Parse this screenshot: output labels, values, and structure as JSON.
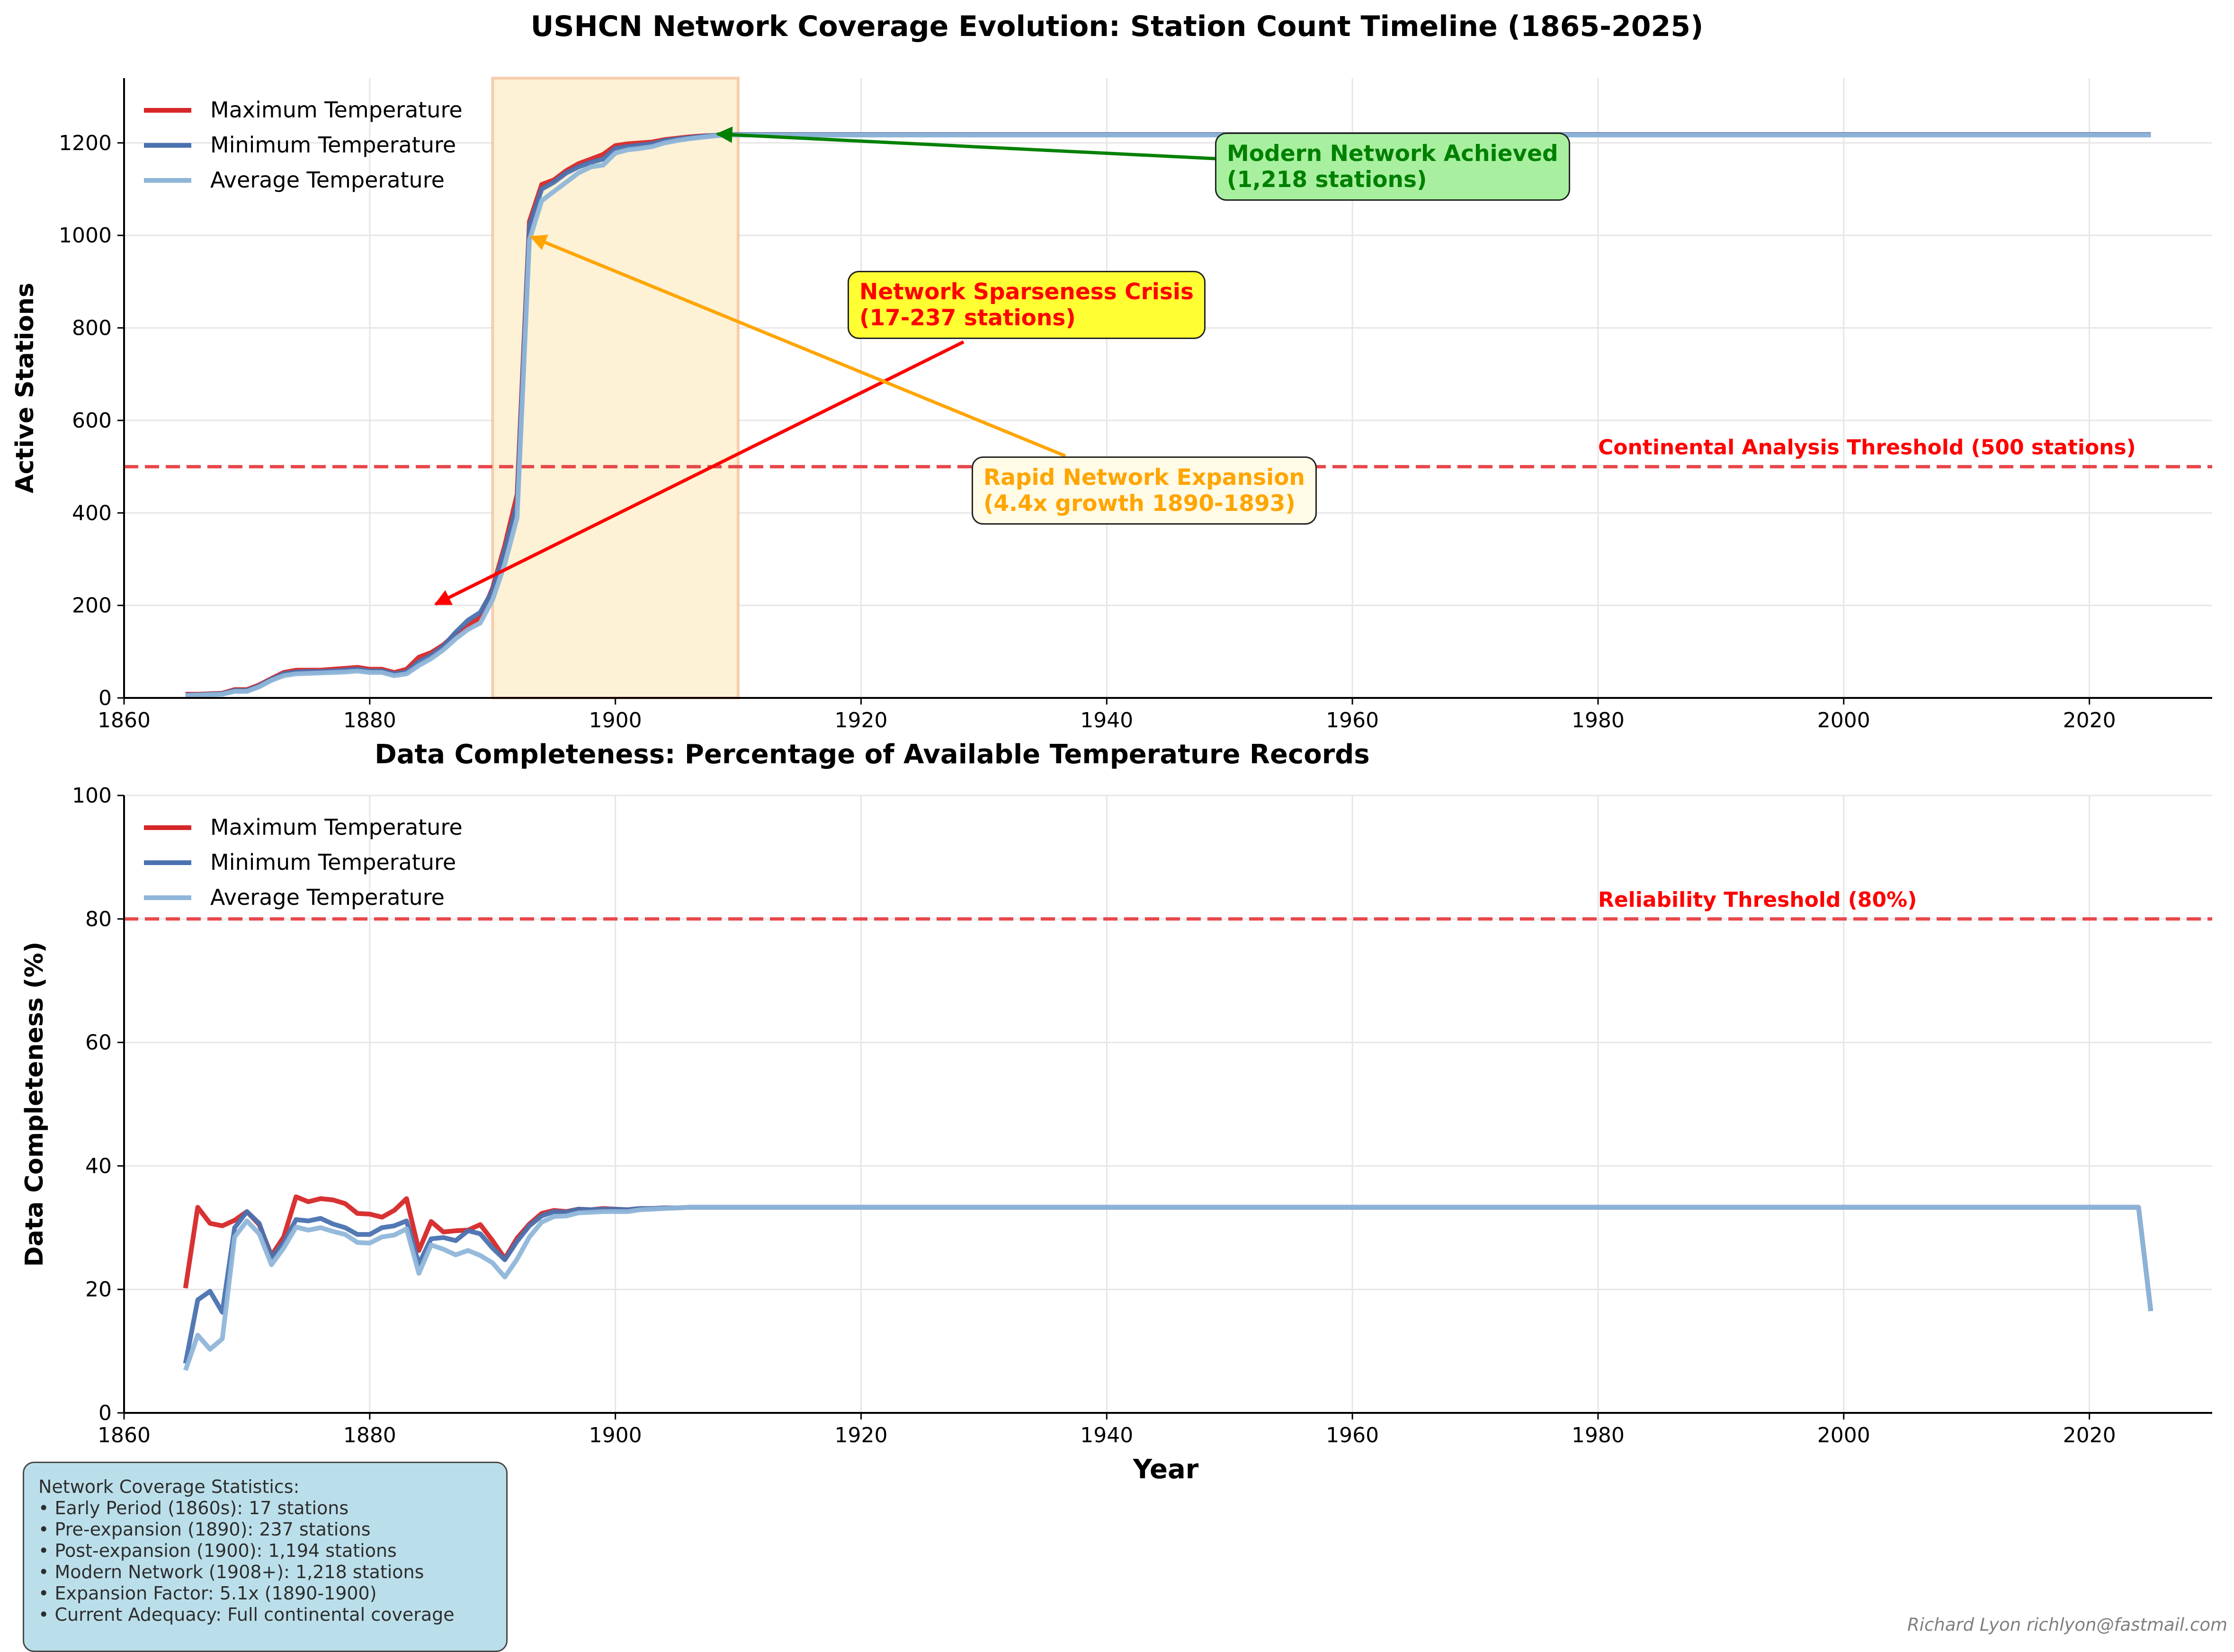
{
  "figure": {
    "title": "USHCN Network Coverage Evolution: Station Count Timeline (1865-2025)",
    "credit": "Richard Lyon richlyon@fastmail.com"
  },
  "annotations": {
    "crisis": {
      "line1": "Network Sparseness Crisis",
      "line2": "(17-237 stations)",
      "color": "#ff0000",
      "box": "#ffff33"
    },
    "modern": {
      "line1": "Modern Network Achieved",
      "line2": "(1,218 stations)",
      "color": "#008000",
      "box": "#a8f0a0"
    },
    "rapid": {
      "line1": "Rapid Network Expansion",
      "line2": "(4.4x growth 1890-1893)",
      "color": "#ffa500",
      "box": "#fffbe6"
    }
  },
  "stats": {
    "heading": "Network Coverage Statistics:",
    "lines": [
      "• Early Period (1860s): 17 stations",
      "• Pre-expansion (1890): 237 stations",
      "• Post-expansion (1900): 1,194 stations",
      "• Modern Network (1908+): 1,218 stations",
      "• Expansion Factor: 5.1x (1890-1900)",
      "• Current Adequacy: Full continental coverage"
    ]
  },
  "colors": {
    "max": "#d62728",
    "min": "#4a72b0",
    "avg": "#8fb6d9",
    "threshold": "#e8474a",
    "highlight": "#fdf1d6"
  },
  "chart_data": [
    {
      "type": "line",
      "title": "",
      "xlabel": "",
      "ylabel": "Active Stations",
      "xlim": [
        1860,
        2030
      ],
      "ylim": [
        0,
        1340
      ],
      "xticks": [
        1860,
        1880,
        1900,
        1920,
        1940,
        1960,
        1980,
        2000,
        2020
      ],
      "yticks": [
        0,
        200,
        400,
        600,
        800,
        1000,
        1200
      ],
      "grid": true,
      "legend": "top-left",
      "shaded_span": [
        1890,
        1910
      ],
      "threshold": {
        "value": 500,
        "label": "Continental Analysis Threshold (500 stations)"
      },
      "x": [
        1865,
        1866,
        1867,
        1868,
        1869,
        1870,
        1871,
        1872,
        1873,
        1874,
        1875,
        1876,
        1877,
        1878,
        1879,
        1880,
        1881,
        1882,
        1883,
        1884,
        1885,
        1886,
        1887,
        1888,
        1889,
        1890,
        1891,
        1892,
        1893,
        1894,
        1895,
        1896,
        1897,
        1898,
        1899,
        1900,
        1901,
        1902,
        1903,
        1904,
        1905,
        1906,
        1907,
        1908,
        1909,
        2025
      ],
      "series": [
        {
          "name": "Maximum Temperature",
          "color": "#d62728",
          "values": [
            8,
            8,
            9,
            10,
            18,
            18,
            28,
            42,
            55,
            60,
            60,
            60,
            62,
            64,
            66,
            62,
            62,
            55,
            62,
            88,
            98,
            115,
            138,
            155,
            175,
            237,
            330,
            440,
            1030,
            1110,
            1120,
            1140,
            1155,
            1165,
            1175,
            1194,
            1198,
            1200,
            1202,
            1207,
            1210,
            1213,
            1215,
            1216,
            1218,
            1218
          ]
        },
        {
          "name": "Minimum Temperature",
          "color": "#4a72b0",
          "values": [
            6,
            7,
            8,
            9,
            16,
            16,
            26,
            40,
            52,
            56,
            57,
            57,
            58,
            60,
            62,
            58,
            58,
            52,
            56,
            78,
            92,
            112,
            142,
            168,
            185,
            232,
            320,
            420,
            1020,
            1100,
            1115,
            1135,
            1148,
            1158,
            1165,
            1188,
            1192,
            1195,
            1198,
            1205,
            1208,
            1211,
            1214,
            1216,
            1218,
            1218
          ]
        },
        {
          "name": "Average Temperature",
          "color": "#8fb6d9",
          "values": [
            5,
            6,
            7,
            8,
            14,
            14,
            24,
            38,
            48,
            52,
            53,
            54,
            55,
            56,
            58,
            55,
            55,
            48,
            52,
            70,
            85,
            104,
            128,
            148,
            162,
            212,
            290,
            390,
            990,
            1075,
            1095,
            1115,
            1135,
            1148,
            1152,
            1178,
            1185,
            1188,
            1192,
            1200,
            1205,
            1209,
            1212,
            1215,
            1217,
            1217
          ]
        }
      ]
    },
    {
      "type": "line",
      "title": "Data Completeness: Percentage of Available Temperature Records",
      "xlabel": "Year",
      "ylabel": "Data Completeness (%)",
      "xlim": [
        1860,
        2030
      ],
      "ylim": [
        0,
        100
      ],
      "xticks": [
        1860,
        1880,
        1900,
        1920,
        1940,
        1960,
        1980,
        2000,
        2020
      ],
      "yticks": [
        0,
        20,
        40,
        60,
        80,
        100
      ],
      "grid": true,
      "legend": "top-left",
      "threshold": {
        "value": 80,
        "label": "Reliability Threshold (80%)"
      },
      "x": [
        1865,
        1866,
        1867,
        1868,
        1869,
        1870,
        1871,
        1872,
        1873,
        1874,
        1875,
        1876,
        1877,
        1878,
        1879,
        1880,
        1881,
        1882,
        1883,
        1884,
        1885,
        1886,
        1887,
        1888,
        1889,
        1890,
        1891,
        1892,
        1893,
        1894,
        1895,
        1896,
        1897,
        1898,
        1899,
        1900,
        1901,
        1902,
        1903,
        1904,
        1905,
        1906,
        1907,
        1910,
        2024,
        2025
      ],
      "series": [
        {
          "name": "Maximum Temperature",
          "color": "#d62728",
          "values": [
            20.2,
            33.3,
            30.7,
            30.3,
            31.2,
            32.6,
            30.5,
            25.5,
            28.5,
            35.0,
            34.2,
            34.7,
            34.5,
            33.9,
            32.3,
            32.2,
            31.7,
            32.8,
            34.7,
            26.3,
            31.0,
            29.3,
            29.5,
            29.6,
            30.5,
            27.9,
            25.0,
            28.3,
            30.6,
            32.3,
            32.8,
            32.6,
            33.0,
            32.9,
            33.1,
            33.0,
            32.9,
            33.1,
            33.1,
            33.2,
            33.2,
            33.3,
            33.3,
            33.3,
            33.3,
            16.5
          ]
        },
        {
          "name": "Minimum Temperature",
          "color": "#4a72b0",
          "values": [
            8.0,
            18.3,
            19.7,
            16.3,
            30.0,
            32.6,
            30.7,
            25.2,
            27.6,
            31.3,
            31.1,
            31.5,
            30.6,
            30.0,
            28.9,
            28.9,
            30.0,
            30.3,
            31.1,
            24.1,
            28.2,
            28.4,
            27.9,
            29.5,
            29.0,
            26.7,
            24.8,
            27.8,
            30.3,
            31.9,
            32.6,
            32.5,
            33.0,
            32.9,
            33.0,
            33.0,
            32.9,
            33.1,
            33.1,
            33.2,
            33.2,
            33.3,
            33.3,
            33.3,
            33.3,
            16.5
          ]
        },
        {
          "name": "Average Temperature",
          "color": "#8fb6d9",
          "values": [
            6.9,
            12.6,
            10.3,
            12.0,
            28.5,
            31.1,
            29.0,
            24.0,
            26.7,
            30.1,
            29.6,
            30.0,
            29.4,
            28.9,
            27.6,
            27.5,
            28.5,
            28.8,
            29.8,
            22.6,
            27.2,
            26.5,
            25.6,
            26.3,
            25.5,
            24.3,
            22.0,
            24.9,
            28.5,
            30.9,
            31.8,
            31.9,
            32.4,
            32.5,
            32.6,
            32.6,
            32.6,
            32.9,
            33.0,
            33.1,
            33.2,
            33.3,
            33.3,
            33.3,
            33.3,
            16.5
          ]
        }
      ]
    }
  ]
}
